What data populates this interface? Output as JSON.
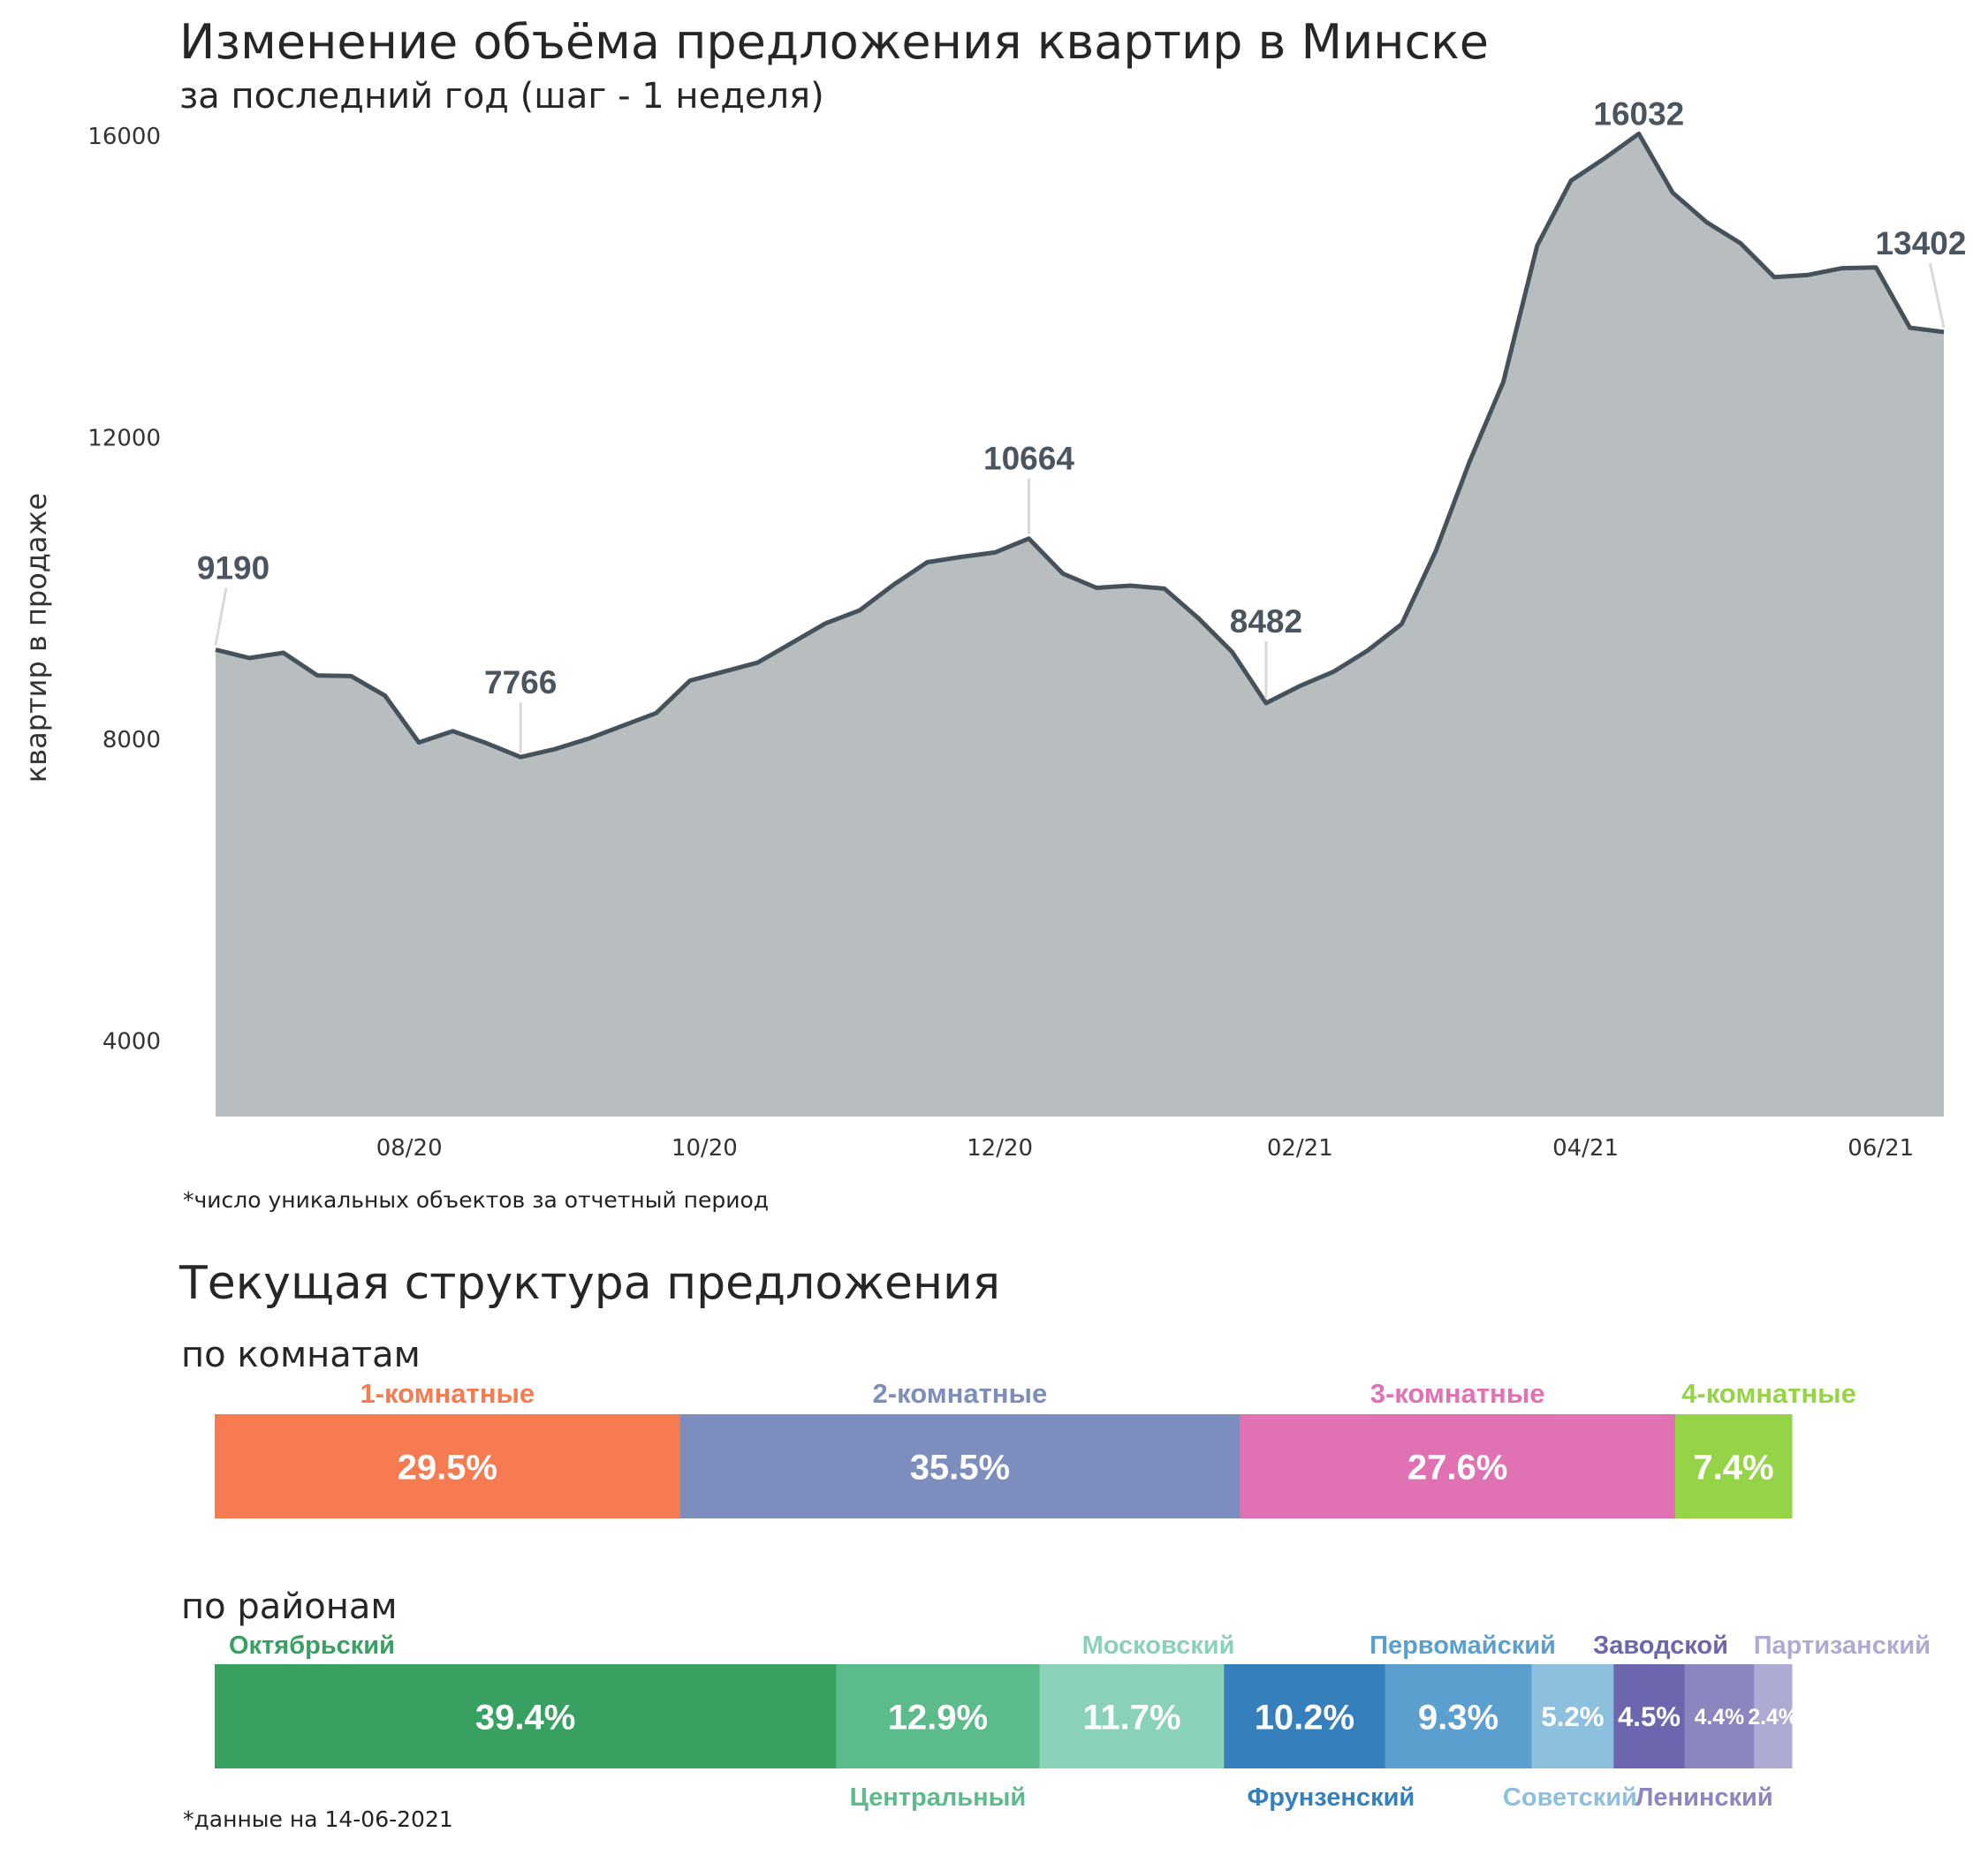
{
  "title": "Изменение объёма предложения квартир в Минске",
  "subtitle": "за последний год (шаг - 1 неделя)",
  "colors": {
    "area_fill": "#b8bdc0",
    "line": "#45525c",
    "annotation_line": "#d9d9d9",
    "peak_label": "#4a5560"
  },
  "chart_data": [
    {
      "type": "area",
      "ylabel": "квартир в продаже",
      "xlabel": "",
      "ylim": [
        3000,
        16400
      ],
      "yticks": [
        4000,
        8000,
        12000,
        16000
      ],
      "xticks": [
        "08/20",
        "10/20",
        "12/20",
        "02/21",
        "04/21",
        "06/21"
      ],
      "grid": false,
      "x": [
        "2020-06-22",
        "2020-06-29",
        "2020-07-06",
        "2020-07-13",
        "2020-07-20",
        "2020-07-27",
        "2020-08-03",
        "2020-08-10",
        "2020-08-17",
        "2020-08-24",
        "2020-08-31",
        "2020-09-07",
        "2020-09-14",
        "2020-09-21",
        "2020-09-28",
        "2020-10-05",
        "2020-10-12",
        "2020-10-19",
        "2020-10-26",
        "2020-11-02",
        "2020-11-09",
        "2020-11-16",
        "2020-11-23",
        "2020-11-30",
        "2020-12-07",
        "2020-12-14",
        "2020-12-21",
        "2020-12-28",
        "2021-01-04",
        "2021-01-11",
        "2021-01-18",
        "2021-01-25",
        "2021-02-01",
        "2021-02-08",
        "2021-02-15",
        "2021-02-22",
        "2021-03-01",
        "2021-03-08",
        "2021-03-15",
        "2021-03-22",
        "2021-03-29",
        "2021-04-05",
        "2021-04-12",
        "2021-04-19",
        "2021-04-26",
        "2021-05-03",
        "2021-05-10",
        "2021-05-17",
        "2021-05-24",
        "2021-05-31",
        "2021-06-07",
        "2021-06-14"
      ],
      "values": [
        9190,
        9080,
        9150,
        8850,
        8840,
        8580,
        7960,
        8110,
        7950,
        7766,
        7870,
        8010,
        8180,
        8350,
        8780,
        8900,
        9020,
        9280,
        9540,
        9710,
        10050,
        10350,
        10420,
        10480,
        10664,
        10200,
        10010,
        10040,
        10000,
        9610,
        9160,
        8482,
        8710,
        8900,
        9180,
        9530,
        10490,
        11680,
        12740,
        14550,
        15410,
        15710,
        16032,
        15250,
        14860,
        14580,
        14130,
        14160,
        14250,
        14260,
        13460,
        13402
      ],
      "annotations": [
        {
          "label": "9190",
          "index": 0
        },
        {
          "label": "7766",
          "index": 9
        },
        {
          "label": "10664",
          "index": 24
        },
        {
          "label": "8482",
          "index": 31
        },
        {
          "label": "16032",
          "index": 42
        },
        {
          "label": "13402",
          "index": 51
        }
      ]
    },
    {
      "type": "bar",
      "stacked": "horizontal-100",
      "categories": [
        "1-комнатные",
        "2-комнатные",
        "3-комнатные",
        "4-комнатные"
      ],
      "values": [
        29.5,
        35.5,
        27.6,
        7.4
      ],
      "labels": [
        "29.5%",
        "35.5%",
        "27.6%",
        "7.4%"
      ],
      "colors": [
        "#f67b51",
        "#7d8dbe",
        "#e072b3",
        "#96d447"
      ]
    },
    {
      "type": "bar",
      "stacked": "horizontal-100",
      "categories": [
        "Октябрьский",
        "Центральный",
        "Московский",
        "Фрунзенский",
        "Первомайский",
        "Советский",
        "Заводской",
        "Ленинский",
        "Партизанский"
      ],
      "values": [
        39.4,
        12.9,
        11.7,
        10.2,
        9.3,
        5.2,
        4.5,
        4.4,
        2.4
      ],
      "labels": [
        "39.4%",
        "12.9%",
        "11.7%",
        "10.2%",
        "9.3%",
        "5.2%",
        "4.5%",
        "4.4%",
        "2.4%"
      ],
      "colors": [
        "#38a162",
        "#5cbb8a",
        "#8ad1ba",
        "#347fbc",
        "#5b9fcf",
        "#8dbfdf",
        "#6b66ad",
        "#8b85c0",
        "#adabd4"
      ]
    }
  ],
  "footnote_top": "*число уникальных объектов за отчетный период",
  "structure_title": "Текущая структура предложения",
  "rooms_title": "по комнатам",
  "districts_title": "по районам",
  "footnote_bottom": "*данные на 14-06-2021"
}
